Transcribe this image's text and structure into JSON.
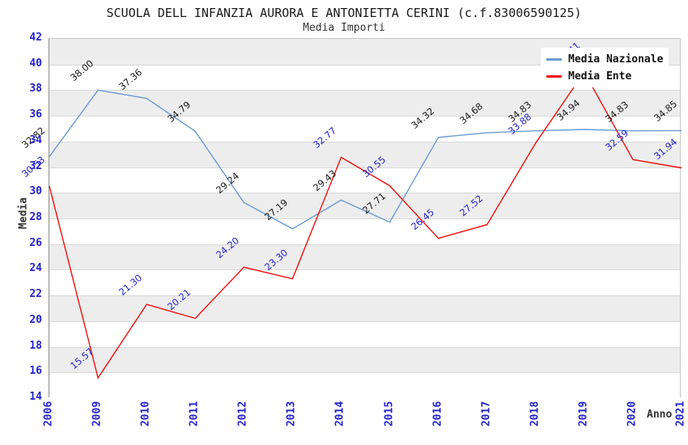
{
  "chart_data": {
    "type": "line",
    "title": "SCUOLA DELL INFANZIA AURORA E ANTONIETTA CERINI (c.f.83006590125)",
    "subtitle": "Media Importi",
    "xlabel": "Anno",
    "ylabel": "Media",
    "categories": [
      "2006",
      "2009",
      "2010",
      "2011",
      "2012",
      "2013",
      "2014",
      "2015",
      "2016",
      "2017",
      "2018",
      "2019",
      "2020",
      "2021"
    ],
    "series": [
      {
        "name": "Media Nazionale",
        "color": "#6b9bd2",
        "label_color": "#1a1a1a",
        "values": [
          32.82,
          38.0,
          37.36,
          34.79,
          29.24,
          27.19,
          29.43,
          27.71,
          34.32,
          34.68,
          34.83,
          34.94,
          34.83,
          34.85
        ]
      },
      {
        "name": "Media Ente",
        "color": "#ee1111",
        "label_color": "#2222cc",
        "values": [
          30.53,
          15.57,
          21.3,
          20.21,
          24.2,
          23.3,
          32.77,
          30.55,
          26.45,
          27.52,
          33.88,
          39.41,
          32.59,
          31.94
        ]
      }
    ],
    "ylim": [
      14,
      42
    ],
    "ytick_step": 2,
    "grid": "horizontal-gridlines-with-alternating-bands",
    "band_color": "#ededed",
    "gridline_color": "#d9d9d9",
    "tick_color": "#2222cc",
    "legend_position": "top-right"
  }
}
